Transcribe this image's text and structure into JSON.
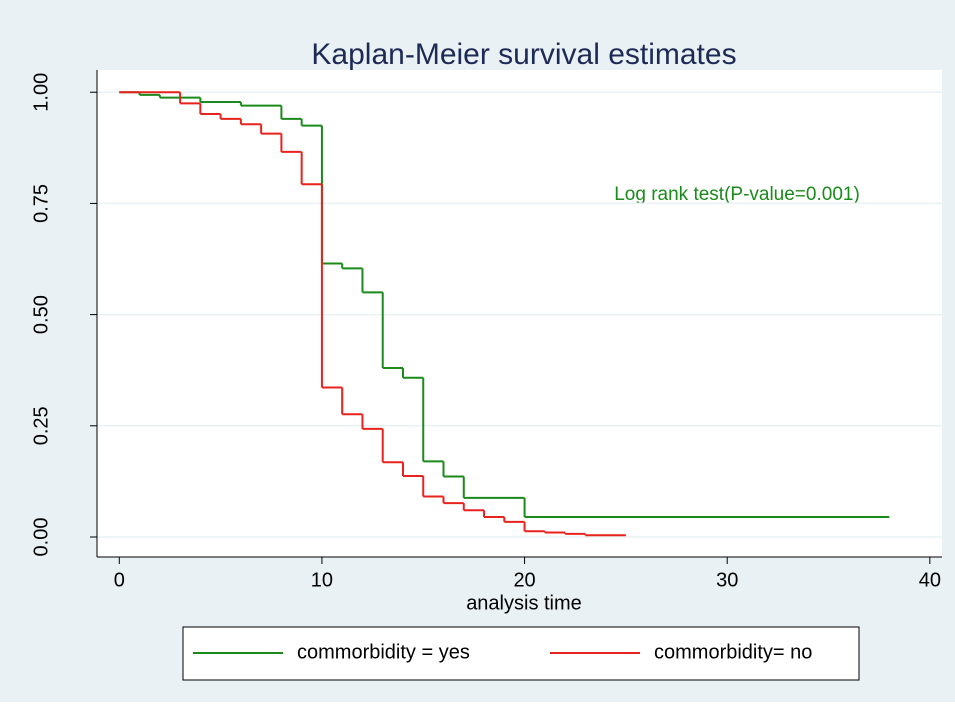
{
  "chart_data": {
    "type": "step",
    "title": "Kaplan-Meier survival estimates",
    "x_label": "analysis time",
    "annotation": "Log rank test(P-value=0.001)",
    "xlim": [
      -1.1,
      40.6
    ],
    "ylim": [
      -0.045,
      1.05
    ],
    "xticks": [
      0,
      10,
      20,
      30,
      40
    ],
    "yticks": [
      {
        "value": 0,
        "label": "0.00"
      },
      {
        "value": 0.25,
        "label": "0.25"
      },
      {
        "value": 0.5,
        "label": "0.50"
      },
      {
        "value": 0.75,
        "label": "0.75"
      },
      {
        "value": 1,
        "label": "1.00"
      }
    ],
    "grid": true,
    "series": [
      {
        "name": "commorbidity = yes",
        "color": "#1a8a1a",
        "x": [
          0,
          1,
          2,
          4,
          6,
          8,
          9,
          10,
          11,
          12,
          13,
          14,
          15,
          16,
          17,
          20,
          38
        ],
        "values": [
          1,
          0.994,
          0.988,
          0.978,
          0.97,
          0.94,
          0.925,
          0.615,
          0.604,
          0.55,
          0.38,
          0.358,
          0.17,
          0.136,
          0.088,
          0.045,
          0.045
        ]
      },
      {
        "name": "commorbidity= no",
        "color": "#e8221c",
        "x": [
          0,
          3,
          4,
          5,
          6,
          7,
          8,
          9,
          10,
          11,
          12,
          13,
          14,
          15,
          16,
          17,
          18,
          19,
          20,
          21,
          22,
          23,
          25
        ],
        "values": [
          1,
          0.975,
          0.951,
          0.94,
          0.928,
          0.907,
          0.866,
          0.793,
          0.336,
          0.276,
          0.243,
          0.168,
          0.137,
          0.091,
          0.076,
          0.06,
          0.045,
          0.034,
          0.013,
          0.01,
          0.007,
          0.004,
          0.004
        ]
      }
    ]
  }
}
